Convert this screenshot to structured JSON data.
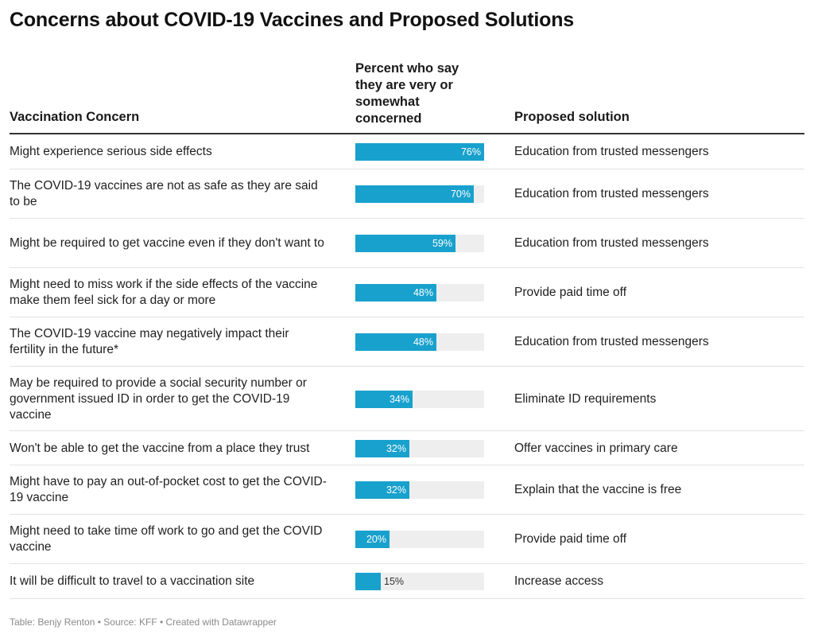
{
  "title": "Concerns about COVID-19 Vaccines and Proposed Solutions",
  "footer": "Table: Benjy Renton • Source: KFF • Created with Datawrapper",
  "colors": {
    "bar": "#18a1cd",
    "track": "#eeeeee"
  },
  "chart_data": {
    "type": "table",
    "columns": {
      "concern": "Vaccination Concern",
      "percent": "Percent who say they are very or somewhat concerned",
      "solution": "Proposed solution"
    },
    "xlim": [
      0,
      76
    ],
    "rows": [
      {
        "concern": "Might experience serious side effects",
        "value": 76,
        "label": "76%",
        "solution": "Education from trusted messengers"
      },
      {
        "concern": "The COVID-19 vaccines are not as safe as they are said to be",
        "value": 70,
        "label": "70%",
        "solution": "Education from trusted messengers"
      },
      {
        "concern": "Might be required to get vaccine even if they don't want to",
        "value": 59,
        "label": "59%",
        "solution": "Education from trusted messengers"
      },
      {
        "concern": "Might need to miss work if the side effects of the vaccine make them feel sick for a day or more",
        "value": 48,
        "label": "48%",
        "solution": "Provide paid time off"
      },
      {
        "concern": "The COVID-19 vaccine may negatively impact their fertility in the future*",
        "value": 48,
        "label": "48%",
        "solution": "Education from trusted messengers"
      },
      {
        "concern": "May be required to provide a social security number or government issued ID in order to get the COVID-19 vaccine",
        "value": 34,
        "label": "34%",
        "solution": "Eliminate ID requirements"
      },
      {
        "concern": "Won't be able to get the vaccine from a place they trust",
        "value": 32,
        "label": "32%",
        "solution": "Offer vaccines in primary care"
      },
      {
        "concern": "Might have to pay an out-of-pocket cost to get the COVID-19 vaccine",
        "value": 32,
        "label": "32%",
        "solution": "Explain that the vaccine is free"
      },
      {
        "concern": "Might need to take time off work to go and get the COVID vaccine",
        "value": 20,
        "label": "20%",
        "solution": "Provide paid time off"
      },
      {
        "concern": "It will be difficult to travel to a vaccination site",
        "value": 15,
        "label": "15%",
        "solution": "Increase access"
      }
    ]
  }
}
